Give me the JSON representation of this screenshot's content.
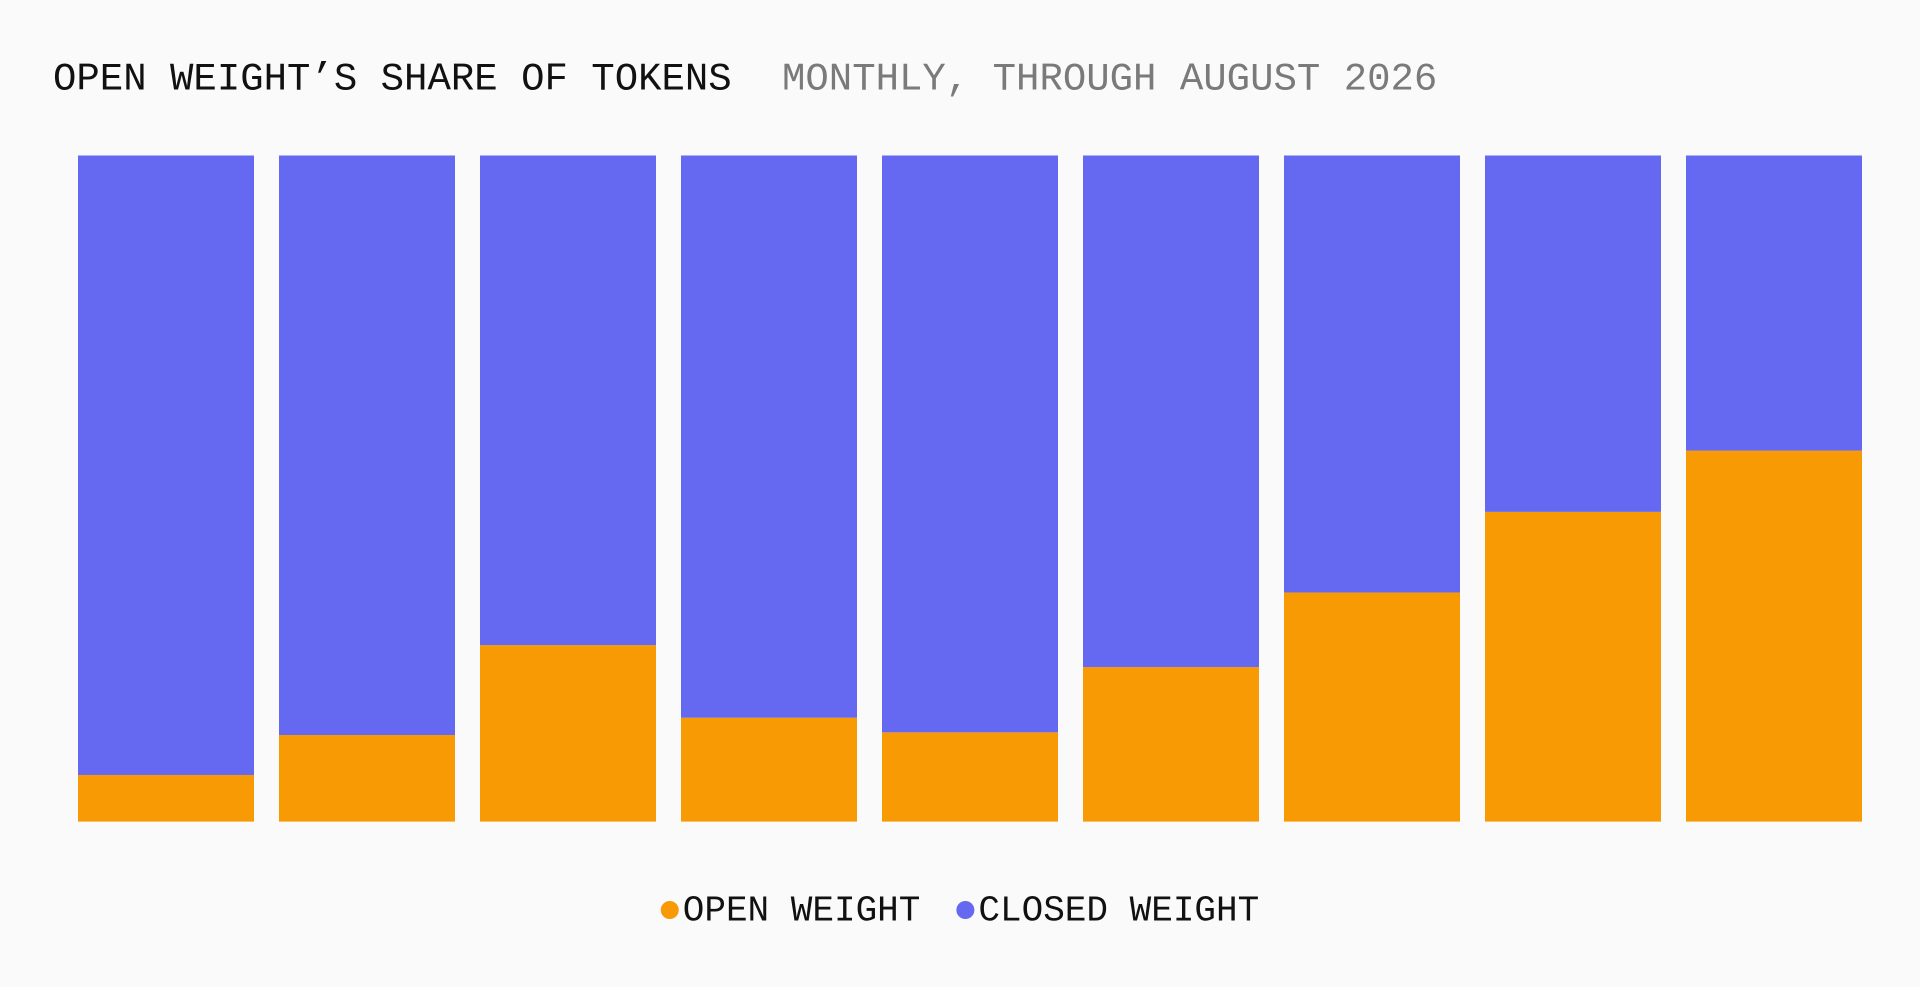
{
  "chart_data": {
    "type": "stacked-bar",
    "title": "OPEN WEIGHT’S SHARE OF TOKENS",
    "subtitle": "MONTHLY, THROUGH AUGUST 2026",
    "categories": [
      null,
      null,
      null,
      null,
      null,
      null,
      null,
      null,
      null
    ],
    "series": [
      {
        "name": "OPEN WEIGHT",
        "color": "#f79a04",
        "values": [
          7,
          13,
          26.5,
          15.6,
          13.4,
          23.2,
          34.4,
          46.5,
          55.7
        ]
      },
      {
        "name": "CLOSED WEIGHT",
        "color": "#6568f0",
        "values": [
          93,
          87,
          73.5,
          84.4,
          86.6,
          76.8,
          65.6,
          53.5,
          44.3
        ]
      }
    ],
    "ylim": [
      0,
      100
    ],
    "legend": "bottom"
  }
}
